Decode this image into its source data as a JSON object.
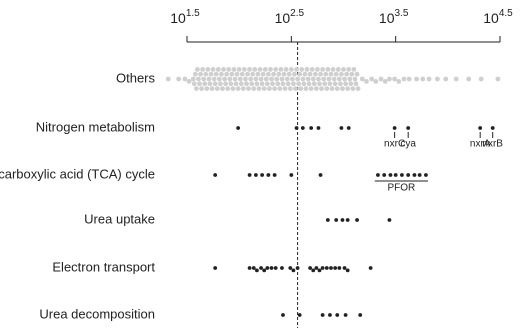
{
  "chart_data": {
    "type": "beeswarm",
    "x_scale": "log",
    "x_base": "10",
    "xlim": [
      1.5,
      4.5
    ],
    "xticks": [
      1.5,
      2.5,
      3.5,
      4.5
    ],
    "reference_line": 2.56,
    "series": [
      {
        "name": "Others",
        "color": "#cfcfcf",
        "values": [
          1.32,
          1.42,
          1.48,
          1.52,
          1.56,
          1.57,
          1.58,
          1.59,
          1.6,
          1.61,
          1.62,
          1.63,
          1.64,
          1.65,
          1.66,
          1.67,
          1.68,
          1.69,
          1.7,
          1.71,
          1.72,
          1.73,
          1.74,
          1.75,
          1.76,
          1.77,
          1.78,
          1.79,
          1.8,
          1.81,
          1.82,
          1.83,
          1.84,
          1.85,
          1.86,
          1.87,
          1.88,
          1.89,
          1.9,
          1.91,
          1.92,
          1.93,
          1.94,
          1.95,
          1.96,
          1.97,
          1.98,
          1.99,
          2,
          2.01,
          2.02,
          2.03,
          2.04,
          2.05,
          2.06,
          2.07,
          2.08,
          2.09,
          2.1,
          2.11,
          2.12,
          2.13,
          2.14,
          2.15,
          2.16,
          2.17,
          2.18,
          2.19,
          2.2,
          2.21,
          2.22,
          2.23,
          2.24,
          2.25,
          2.26,
          2.27,
          2.28,
          2.29,
          2.3,
          2.31,
          2.32,
          2.33,
          2.34,
          2.35,
          2.36,
          2.37,
          2.38,
          2.39,
          2.4,
          2.41,
          2.42,
          2.43,
          2.44,
          2.45,
          2.46,
          2.47,
          2.48,
          2.49,
          2.5,
          2.51,
          2.52,
          2.53,
          2.54,
          2.55,
          2.56,
          2.57,
          2.58,
          2.59,
          2.6,
          2.61,
          2.62,
          2.63,
          2.64,
          2.65,
          2.66,
          2.67,
          2.68,
          2.69,
          2.7,
          2.71,
          2.72,
          2.73,
          2.74,
          2.75,
          2.76,
          2.77,
          2.78,
          2.79,
          2.8,
          2.81,
          2.82,
          2.83,
          2.84,
          2.85,
          2.86,
          2.87,
          2.88,
          2.89,
          2.9,
          2.91,
          2.92,
          2.93,
          2.94,
          2.95,
          2.96,
          2.97,
          2.98,
          2.99,
          3,
          3.01,
          3.02,
          3.03,
          3.04,
          3.05,
          3.06,
          3.07,
          3.08,
          3.09,
          3.1,
          3.11,
          3.12,
          3.13,
          3.14,
          3.18,
          3.22,
          3.27,
          3.31,
          3.36,
          3.4,
          3.44,
          3.49,
          3.53,
          3.58,
          3.63,
          3.7,
          3.76,
          3.82,
          3.9,
          3.98,
          4.08,
          4.2,
          4.32,
          4.48
        ]
      },
      {
        "name": "Nitrogen metabolism",
        "color": "#222222",
        "values": [
          1.99,
          2.55,
          2.61,
          2.69,
          2.76,
          2.98,
          3.05,
          3.49,
          3.62,
          4.31,
          4.43
        ],
        "annotations": [
          {
            "text": "nxrC",
            "x": 3.49
          },
          {
            "text": "cya",
            "x": 3.62
          },
          {
            "text": "nxrA",
            "x": 4.31
          },
          {
            "text": "nxrB",
            "x": 4.43
          }
        ]
      },
      {
        "name": "Tricarboxylic acid (TCA) cycle",
        "color": "#222222",
        "values": [
          1.77,
          2.1,
          2.16,
          2.22,
          2.28,
          2.34,
          2.5,
          2.78,
          3.33,
          3.39,
          3.45,
          3.5,
          3.56,
          3.62,
          3.68,
          3.73,
          3.79
        ],
        "annotations": [
          {
            "text": "PFOR",
            "x": [
              3.3,
              3.81
            ]
          }
        ]
      },
      {
        "name": "Urea uptake",
        "color": "#222222",
        "values": [
          2.85,
          2.93,
          2.99,
          3.04,
          3.13,
          3.44
        ]
      },
      {
        "name": "Electron transport",
        "color": "#222222",
        "values": [
          1.77,
          2.1,
          2.14,
          2.17,
          2.21,
          2.24,
          2.27,
          2.31,
          2.35,
          2.41,
          2.49,
          2.52,
          2.56,
          2.68,
          2.71,
          2.74,
          2.77,
          2.8,
          2.84,
          2.88,
          2.92,
          2.96,
          3.01,
          3.04,
          3.26
        ]
      },
      {
        "name": "Urea decomposition",
        "color": "#222222",
        "values": [
          2.42,
          2.58,
          2.8,
          2.87,
          2.94,
          3.02,
          3.16
        ]
      }
    ]
  }
}
